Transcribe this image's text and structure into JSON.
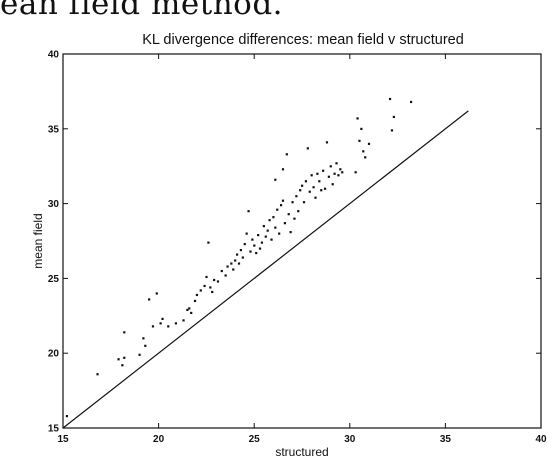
{
  "caption_text": "ean field method.",
  "chart_data": {
    "type": "scatter",
    "title": "KL divergence differences: mean field v structured",
    "xlabel": "structured",
    "ylabel": "mean field",
    "xlim": [
      15,
      40
    ],
    "ylim": [
      15,
      40
    ],
    "xticks": [
      15,
      20,
      25,
      30,
      35,
      40
    ],
    "yticks": [
      15,
      20,
      25,
      30,
      35,
      40
    ],
    "grid": false,
    "reference_line": {
      "x": [
        15,
        36.2
      ],
      "y": [
        15,
        36.2
      ]
    },
    "points": [
      [
        15.2,
        15.8
      ],
      [
        16.8,
        18.6
      ],
      [
        17.9,
        19.6
      ],
      [
        18.1,
        19.2
      ],
      [
        18.2,
        19.7
      ],
      [
        18.2,
        21.4
      ],
      [
        19.0,
        19.9
      ],
      [
        19.2,
        21.0
      ],
      [
        19.3,
        20.5
      ],
      [
        19.5,
        23.6
      ],
      [
        19.7,
        21.8
      ],
      [
        19.9,
        24.0
      ],
      [
        20.1,
        22.0
      ],
      [
        20.2,
        22.3
      ],
      [
        20.5,
        21.8
      ],
      [
        20.9,
        22.0
      ],
      [
        21.3,
        22.2
      ],
      [
        21.5,
        22.9
      ],
      [
        21.6,
        23.0
      ],
      [
        21.7,
        22.7
      ],
      [
        21.9,
        23.5
      ],
      [
        22.0,
        23.9
      ],
      [
        22.2,
        24.2
      ],
      [
        22.4,
        24.5
      ],
      [
        22.5,
        25.1
      ],
      [
        22.6,
        27.4
      ],
      [
        22.7,
        24.4
      ],
      [
        22.8,
        24.1
      ],
      [
        22.9,
        24.9
      ],
      [
        23.1,
        24.8
      ],
      [
        23.3,
        25.5
      ],
      [
        23.5,
        25.2
      ],
      [
        23.6,
        25.8
      ],
      [
        23.8,
        26.0
      ],
      [
        23.9,
        25.6
      ],
      [
        24.0,
        26.2
      ],
      [
        24.1,
        26.6
      ],
      [
        24.2,
        26.0
      ],
      [
        24.3,
        26.9
      ],
      [
        24.4,
        26.4
      ],
      [
        24.5,
        27.3
      ],
      [
        24.6,
        28.0
      ],
      [
        24.7,
        29.5
      ],
      [
        24.8,
        26.8
      ],
      [
        24.9,
        27.6
      ],
      [
        25.0,
        27.2
      ],
      [
        25.1,
        26.7
      ],
      [
        25.2,
        27.9
      ],
      [
        25.3,
        27.0
      ],
      [
        25.4,
        27.4
      ],
      [
        25.5,
        28.5
      ],
      [
        25.6,
        27.8
      ],
      [
        25.7,
        28.2
      ],
      [
        25.8,
        28.9
      ],
      [
        25.9,
        27.6
      ],
      [
        26.0,
        29.1
      ],
      [
        26.1,
        31.6
      ],
      [
        26.1,
        28.4
      ],
      [
        26.2,
        29.6
      ],
      [
        26.3,
        28.0
      ],
      [
        26.4,
        29.9
      ],
      [
        26.5,
        30.2
      ],
      [
        26.5,
        32.3
      ],
      [
        26.6,
        28.7
      ],
      [
        26.7,
        33.3
      ],
      [
        26.8,
        29.3
      ],
      [
        26.9,
        28.1
      ],
      [
        27.0,
        30.1
      ],
      [
        27.1,
        29.0
      ],
      [
        27.2,
        30.5
      ],
      [
        27.3,
        29.5
      ],
      [
        27.4,
        30.9
      ],
      [
        27.5,
        31.2
      ],
      [
        27.6,
        30.1
      ],
      [
        27.7,
        31.5
      ],
      [
        27.8,
        33.7
      ],
      [
        27.9,
        30.8
      ],
      [
        28.0,
        31.9
      ],
      [
        28.1,
        31.1
      ],
      [
        28.2,
        30.4
      ],
      [
        28.3,
        32.0
      ],
      [
        28.4,
        31.5
      ],
      [
        28.5,
        30.9
      ],
      [
        28.6,
        32.2
      ],
      [
        28.7,
        31.0
      ],
      [
        28.8,
        34.1
      ],
      [
        28.9,
        31.8
      ],
      [
        29.0,
        32.5
      ],
      [
        29.1,
        31.3
      ],
      [
        29.2,
        32.0
      ],
      [
        29.3,
        32.7
      ],
      [
        29.4,
        31.9
      ],
      [
        29.5,
        32.3
      ],
      [
        29.6,
        32.1
      ],
      [
        30.3,
        32.1
      ],
      [
        30.4,
        35.7
      ],
      [
        30.5,
        34.2
      ],
      [
        30.6,
        35.0
      ],
      [
        30.7,
        33.5
      ],
      [
        30.8,
        33.1
      ],
      [
        31.0,
        34.0
      ],
      [
        32.1,
        37.0
      ],
      [
        32.2,
        34.9
      ],
      [
        32.3,
        35.8
      ],
      [
        33.2,
        36.8
      ]
    ]
  }
}
